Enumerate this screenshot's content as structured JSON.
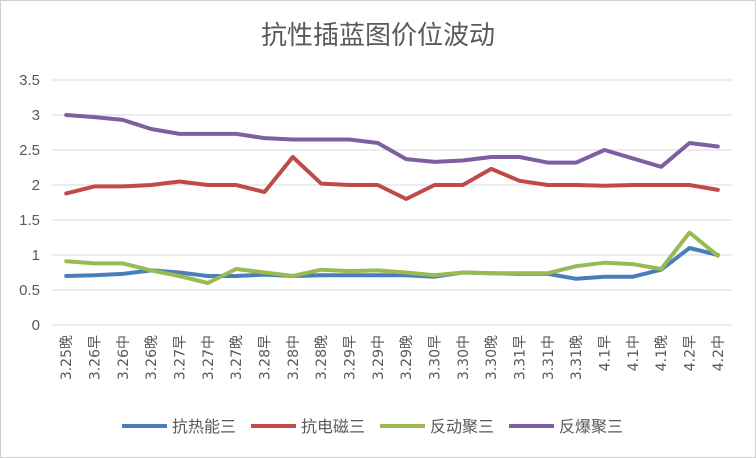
{
  "chart_data": {
    "type": "line",
    "title": "抗性插蓝图价位波动",
    "xlabel": "",
    "ylabel": "",
    "ylim": [
      0,
      3.5
    ],
    "yticks": [
      "0",
      "0.5",
      "1",
      "1.5",
      "2",
      "2.5",
      "3",
      "3.5"
    ],
    "grid": true,
    "legend_position": "bottom",
    "categories": [
      "3.25晚",
      "3.26早",
      "3.26中",
      "3.26晚",
      "3.27早",
      "3.27中",
      "3.27晚",
      "3.28早",
      "3.28中",
      "3.28晚",
      "3.29早",
      "3.29中",
      "3.29晚",
      "3.30早",
      "3.30中",
      "3.30晚",
      "3.31早",
      "3.31中",
      "3.31晚",
      "4.1早",
      "4.1中",
      "4.1晚",
      "4.2早",
      "4.2中"
    ],
    "series": [
      {
        "name": "抗热能三",
        "color": "#4a7ebb",
        "values": [
          0.7,
          0.71,
          0.73,
          0.78,
          0.75,
          0.7,
          0.7,
          0.72,
          0.7,
          0.71,
          0.71,
          0.71,
          0.71,
          0.69,
          0.75,
          0.74,
          0.73,
          0.73,
          0.66,
          0.69,
          0.69,
          0.79,
          1.1,
          1.0
        ]
      },
      {
        "name": "抗电磁三",
        "color": "#be4b48",
        "values": [
          1.88,
          1.98,
          1.98,
          2.0,
          2.05,
          2.0,
          2.0,
          1.9,
          2.4,
          2.02,
          2.0,
          2.0,
          1.8,
          2.0,
          2.0,
          2.23,
          2.06,
          2.0,
          2.0,
          1.99,
          2.0,
          2.0,
          2.0,
          1.93
        ]
      },
      {
        "name": "反动聚三",
        "color": "#98b954",
        "values": [
          0.91,
          0.88,
          0.88,
          0.78,
          0.7,
          0.6,
          0.8,
          0.75,
          0.7,
          0.79,
          0.77,
          0.78,
          0.75,
          0.71,
          0.75,
          0.74,
          0.74,
          0.74,
          0.84,
          0.89,
          0.87,
          0.8,
          1.32,
          0.99
        ]
      },
      {
        "name": "反爆聚三",
        "color": "#7d60a0",
        "values": [
          3.0,
          2.97,
          2.93,
          2.8,
          2.73,
          2.73,
          2.73,
          2.67,
          2.65,
          2.65,
          2.65,
          2.6,
          2.37,
          2.33,
          2.35,
          2.4,
          2.4,
          2.32,
          2.32,
          2.5,
          2.38,
          2.26,
          2.6,
          2.55
        ]
      }
    ]
  }
}
